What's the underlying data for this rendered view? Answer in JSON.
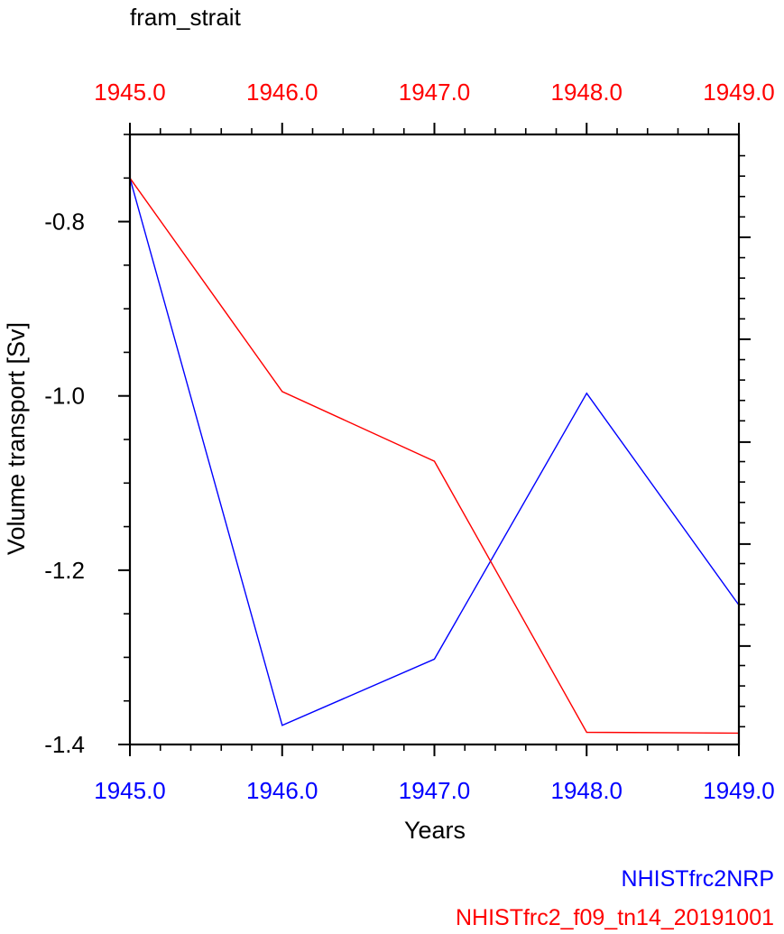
{
  "chart_data": {
    "type": "line",
    "title": "fram_strait",
    "xlabel": "Years",
    "ylabel": "Volume transport [Sv]",
    "xlim": [
      1945.0,
      1949.0
    ],
    "ylim": [
      -1.4,
      -0.7
    ],
    "x": [
      1945,
      1946,
      1947,
      1948,
      1949
    ],
    "xticks": [
      {
        "value": 1945,
        "label": "1945.0"
      },
      {
        "value": 1946,
        "label": "1946.0"
      },
      {
        "value": 1947,
        "label": "1947.0"
      },
      {
        "value": 1948,
        "label": "1948.0"
      },
      {
        "value": 1949,
        "label": "1949.0"
      }
    ],
    "yticks": [
      {
        "value": -0.8,
        "label": "-0.8"
      },
      {
        "value": -1.0,
        "label": "-1.0"
      },
      {
        "value": -1.2,
        "label": "-1.2"
      },
      {
        "value": -1.4,
        "label": "-1.4"
      }
    ],
    "right_axis_ticks": [
      -0.818,
      -0.935,
      -1.053,
      -1.17,
      -1.287
    ],
    "series": [
      {
        "name": "NHISTfrc2NRP",
        "color": "#0000ff",
        "values": [
          -0.75,
          -1.378,
          -1.302,
          -0.997,
          -1.24
        ]
      },
      {
        "name": "NHISTfrc2_f09_tn14_20191001",
        "color": "#ff0000",
        "values": [
          -0.75,
          -0.995,
          -1.075,
          -1.386,
          -1.387
        ]
      }
    ],
    "bottom_axis_color": "#0000ff",
    "top_axis_color": "#ff0000",
    "grid": false,
    "legend_position": "bottom-right"
  }
}
